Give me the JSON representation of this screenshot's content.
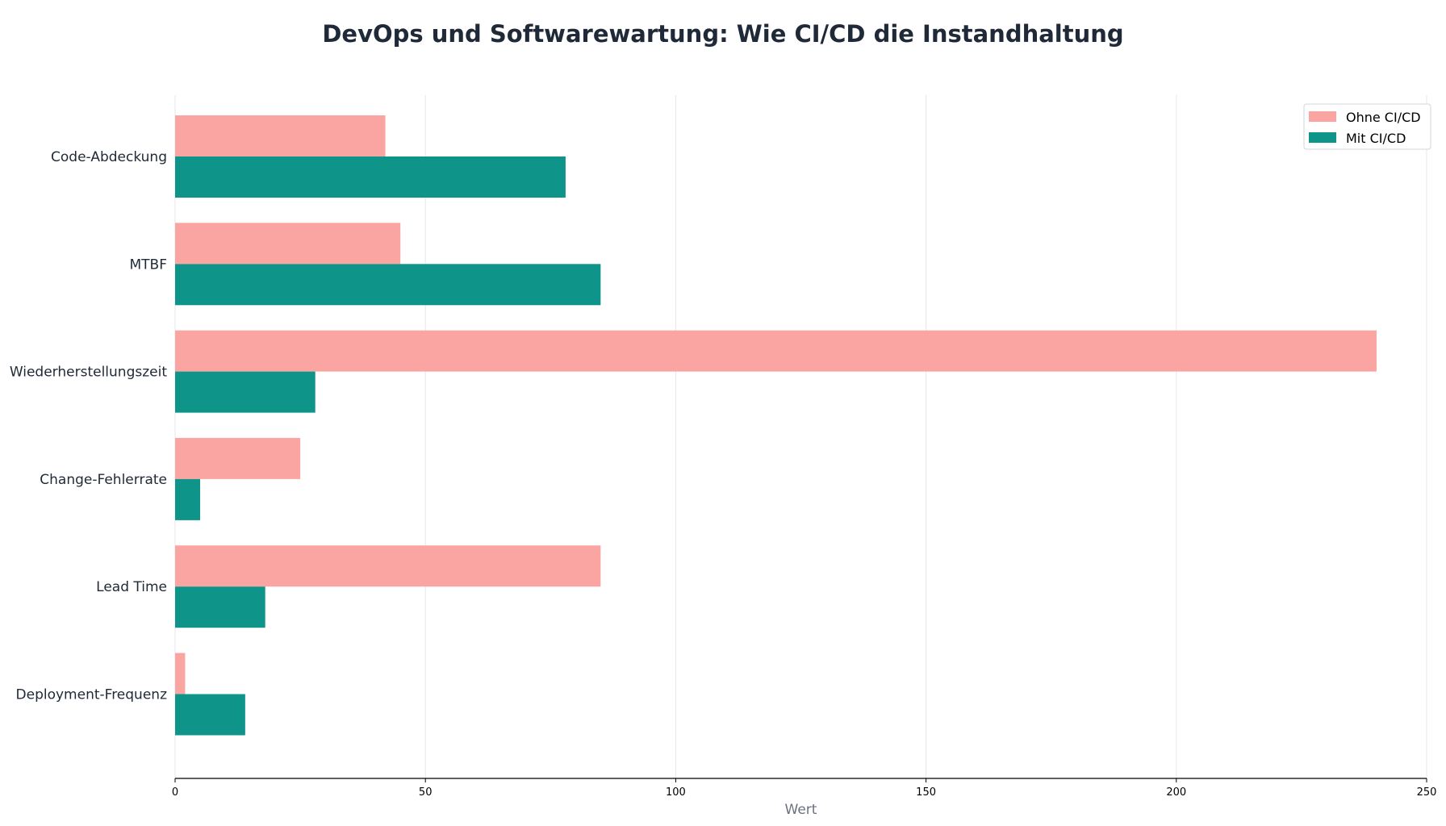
{
  "chart_data": {
    "type": "bar",
    "orientation": "horizontal",
    "title": "DevOps und Softwarewartung: Wie CI/CD die Instandhaltung",
    "xlabel": "Wert",
    "ylabel": "",
    "xlim": [
      0,
      250
    ],
    "xticks": [
      0,
      50,
      100,
      150,
      200,
      250
    ],
    "grid": "vertical",
    "legend_position": "top-right",
    "categories": [
      "Code-Abdeckung",
      "MTBF",
      "Wiederherstellungszeit",
      "Change-Fehlerrate",
      "Lead Time",
      "Deployment-Frequenz"
    ],
    "series": [
      {
        "name": "Ohne CI/CD",
        "color": "#fba5a3",
        "values": [
          42,
          45,
          240,
          25,
          85,
          2
        ]
      },
      {
        "name": "Mit CI/CD",
        "color": "#0e9488",
        "values": [
          78,
          85,
          28,
          5,
          18,
          14
        ]
      }
    ]
  }
}
